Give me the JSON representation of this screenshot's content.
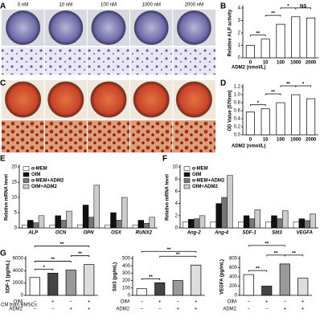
{
  "panel_labels": [
    "A",
    "B",
    "C",
    "D",
    "E",
    "F",
    "G"
  ],
  "photo_labels": [
    "0 nM",
    "10 nM",
    "100 nM",
    "1000 nM",
    "2000 nM"
  ],
  "conditions": {
    "group_label": "CM from BMSCs",
    "rows": [
      {
        "name": "OIM",
        "signs": [
          "−",
          "+",
          "−",
          "+"
        ]
      },
      {
        "name": "ADM2",
        "signs": [
          "−",
          "−",
          "+",
          "+"
        ]
      }
    ]
  },
  "chart_data": [
    {
      "type": "bar",
      "ylabel": "Relative ALP activity",
      "xlabel": "ADM2 (nmol/L)",
      "categories": [
        "0",
        "10",
        "100",
        "1000",
        "2000"
      ],
      "values": [
        1.0,
        1.5,
        2.7,
        3.3,
        3.2
      ],
      "color": "#ffffff",
      "ylim": [
        0,
        4
      ],
      "yticks": [
        0,
        1,
        2,
        3,
        4
      ],
      "annotations": [
        {
          "text": "**",
          "from": 0,
          "to": 1
        },
        {
          "text": "**",
          "from": 1,
          "to": 2
        },
        {
          "text": "*",
          "from": 2,
          "to": 3
        },
        {
          "text": "NS",
          "from": 3,
          "to": 4
        }
      ]
    },
    {
      "type": "bar",
      "ylabel": "OD Value (570nm)",
      "xlabel": "ADM2 (nmol/L)",
      "categories": [
        "0",
        "10",
        "100",
        "1000",
        "2000"
      ],
      "values": [
        0.57,
        0.65,
        0.8,
        1.0,
        0.9
      ],
      "color": "#ffffff",
      "ylim": [
        0,
        1.2
      ],
      "yticks": [
        {
          "value": 0,
          "label": "0.0"
        },
        0.2,
        0.4,
        0.6,
        0.8,
        {
          "value": 1,
          "label": "1.0"
        },
        1.2
      ],
      "annotations": [
        {
          "text": "*",
          "from": 0,
          "to": 1
        },
        {
          "text": "**",
          "from": 1,
          "to": 2
        },
        {
          "text": "**",
          "from": 2,
          "to": 3
        },
        {
          "text": "*",
          "from": 3,
          "to": 4
        }
      ]
    },
    {
      "type": "bar",
      "ylabel": "Relative mRNA level",
      "categories": [
        "ALP",
        "OCN",
        "OPN",
        "OSX",
        "RUNX2"
      ],
      "ylim": [
        0,
        20
      ],
      "yticks": [
        0,
        5,
        10,
        15,
        20
      ],
      "legend": "upper left",
      "series": [
        {
          "name": "α-MEM",
          "color": "#ffffff",
          "values": [
            1,
            1,
            1,
            1,
            1
          ]
        },
        {
          "name": "OIM",
          "color": "#111111",
          "values": [
            2.5,
            4,
            7.5,
            5,
            2.5
          ]
        },
        {
          "name": "α-MEM+ADM2",
          "color": "#777777",
          "values": [
            1.7,
            2.5,
            3.5,
            2.5,
            1.5
          ]
        },
        {
          "name": "OIM+ADM2",
          "color": "#cccccc",
          "values": [
            4,
            5.5,
            14,
            10,
            3.5
          ]
        }
      ]
    },
    {
      "type": "bar",
      "ylabel": "Relative mRNA level",
      "categories": [
        "Ang-2",
        "Ang-4",
        "SDF-1",
        "Slit3",
        "VEGFA"
      ],
      "ylim": [
        0,
        10
      ],
      "yticks": [
        0,
        2,
        4,
        6,
        8,
        10
      ],
      "legend": "upper left",
      "series": [
        {
          "name": "α-MEM",
          "color": "#ffffff",
          "values": [
            1,
            1,
            1,
            1,
            1
          ]
        },
        {
          "name": "OIM",
          "color": "#111111",
          "values": [
            1.4,
            4,
            2,
            2,
            1.5
          ]
        },
        {
          "name": "α-MEM+ADM2",
          "color": "#777777",
          "values": [
            1.5,
            5,
            1.5,
            1.5,
            1.2
          ]
        },
        {
          "name": "OIM+ADM2",
          "color": "#cccccc",
          "values": [
            2,
            8.6,
            3,
            2.8,
            2.3
          ]
        }
      ]
    },
    {
      "type": "bar",
      "ylabel": "SDF-1 (pg/mL)",
      "categories": [
        null,
        null,
        null,
        null
      ],
      "values": [
        2900,
        3600,
        4100,
        5000
      ],
      "colors": [
        "#ffffff",
        "#444444",
        "#999999",
        "#dddddd"
      ],
      "ylim": [
        0,
        6000
      ],
      "yticks": [
        0,
        2000,
        4000,
        6000
      ],
      "annotations": [
        {
          "text": "*",
          "from": 0,
          "to": 1
        },
        {
          "text": "**",
          "from": 0,
          "to": 2
        },
        {
          "text": "**",
          "from": 2,
          "to": 3
        },
        {
          "text": "**",
          "from": 0,
          "to": 3
        }
      ]
    },
    {
      "type": "bar",
      "ylabel": "Slit3 (pg/mL)",
      "categories": [
        null,
        null,
        null,
        null
      ],
      "values": [
        90,
        170,
        200,
        410
      ],
      "colors": [
        "#ffffff",
        "#444444",
        "#999999",
        "#dddddd"
      ],
      "ylim": [
        0,
        500
      ],
      "yticks": [
        0,
        100,
        200,
        300,
        400,
        500
      ],
      "annotations": [
        {
          "text": "**",
          "from": 0,
          "to": 1
        },
        {
          "text": "**",
          "from": 1,
          "to": 3
        },
        {
          "text": "**",
          "from": 0,
          "to": 3
        }
      ]
    },
    {
      "type": "bar",
      "ylabel": "VEGFA (pg/mL)",
      "categories": [
        null,
        null,
        null,
        null
      ],
      "values": [
        450,
        200,
        680,
        370
      ],
      "colors": [
        "#ffffff",
        "#444444",
        "#999999",
        "#dddddd"
      ],
      "ylim": [
        0,
        800
      ],
      "yticks": [
        0,
        200,
        400,
        600,
        800
      ],
      "annotations": [
        {
          "text": "**",
          "from": 0,
          "to": 1
        },
        {
          "text": "**",
          "from": 1,
          "to": 2
        },
        {
          "text": "**",
          "from": 2,
          "to": 3
        },
        {
          "text": "**",
          "from": 0,
          "to": 2
        }
      ]
    }
  ]
}
